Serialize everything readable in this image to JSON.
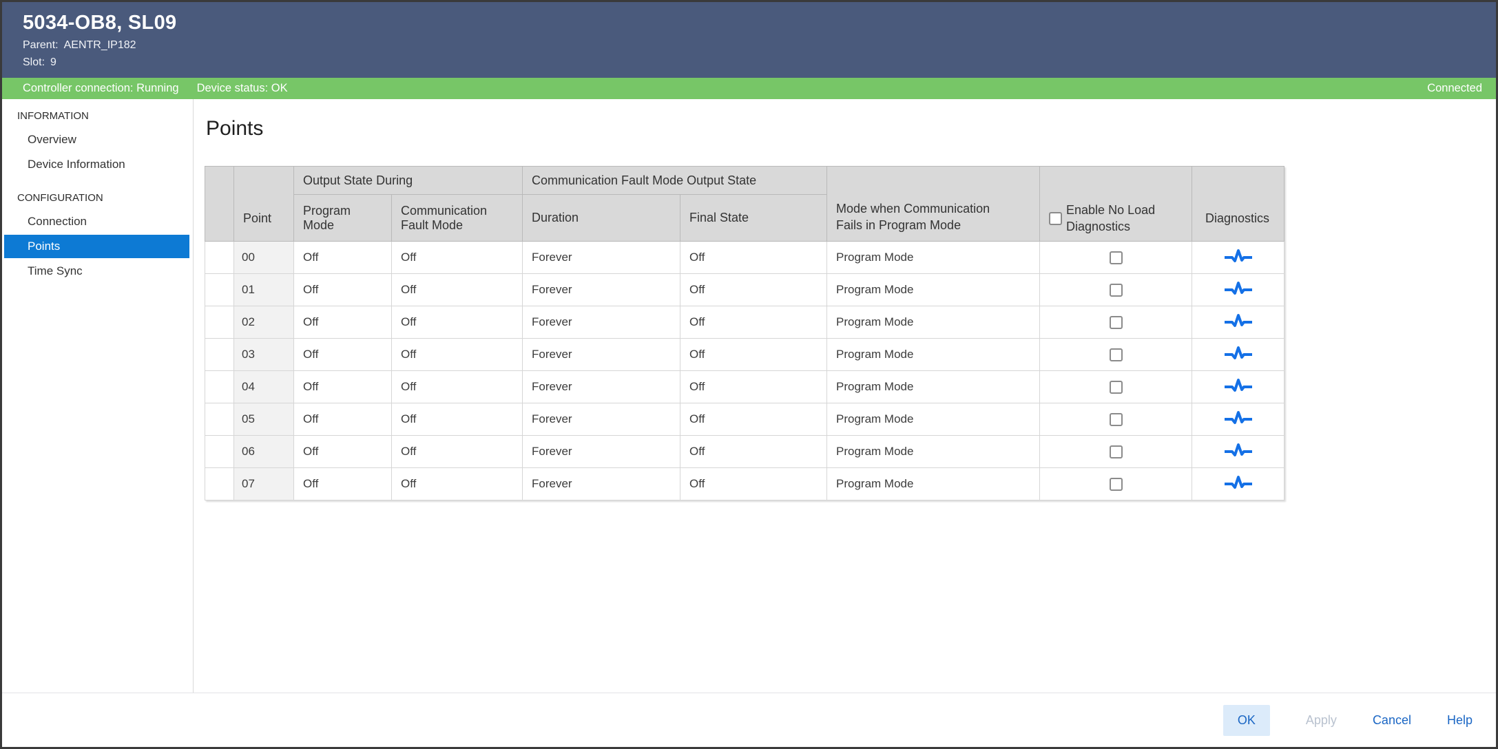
{
  "window": {
    "title": "5034-OB8, SL09",
    "parent_label": "Parent:",
    "parent_value": "AENTR_IP182",
    "slot_label": "Slot:",
    "slot_value": "9"
  },
  "status_bar": {
    "controller_connection": "Controller connection: Running",
    "device_status": "Device status: OK",
    "connection_state": "Connected"
  },
  "sidebar": {
    "sections": [
      {
        "title": "INFORMATION",
        "items": [
          {
            "label": "Overview",
            "selected": false
          },
          {
            "label": "Device Information",
            "selected": false
          }
        ]
      },
      {
        "title": "CONFIGURATION",
        "items": [
          {
            "label": "Connection",
            "selected": false
          },
          {
            "label": "Points",
            "selected": true
          },
          {
            "label": "Time Sync",
            "selected": false
          }
        ]
      }
    ]
  },
  "main": {
    "title": "Points",
    "table": {
      "header": {
        "group_output_state": "Output State During",
        "group_comm_fault": "Communication Fault Mode Output State",
        "point": "Point",
        "program_mode": "Program Mode",
        "comm_fault_mode": "Communication Fault Mode",
        "duration": "Duration",
        "final_state": "Final State",
        "mode_when": "Mode when Communication Fails in Program Mode",
        "enable_no_load": "Enable No Load Diagnostics",
        "diagnostics": "Diagnostics",
        "enable_no_load_checked": false
      },
      "rows": [
        {
          "point": "00",
          "program_mode": "Off",
          "communication_fault_mode": "Off",
          "duration": "Forever",
          "final_state": "Off",
          "mode_when_communication_fails": "Program Mode",
          "enable_no_load": false
        },
        {
          "point": "01",
          "program_mode": "Off",
          "communication_fault_mode": "Off",
          "duration": "Forever",
          "final_state": "Off",
          "mode_when_communication_fails": "Program Mode",
          "enable_no_load": false
        },
        {
          "point": "02",
          "program_mode": "Off",
          "communication_fault_mode": "Off",
          "duration": "Forever",
          "final_state": "Off",
          "mode_when_communication_fails": "Program Mode",
          "enable_no_load": false
        },
        {
          "point": "03",
          "program_mode": "Off",
          "communication_fault_mode": "Off",
          "duration": "Forever",
          "final_state": "Off",
          "mode_when_communication_fails": "Program Mode",
          "enable_no_load": false
        },
        {
          "point": "04",
          "program_mode": "Off",
          "communication_fault_mode": "Off",
          "duration": "Forever",
          "final_state": "Off",
          "mode_when_communication_fails": "Program Mode",
          "enable_no_load": false
        },
        {
          "point": "05",
          "program_mode": "Off",
          "communication_fault_mode": "Off",
          "duration": "Forever",
          "final_state": "Off",
          "mode_when_communication_fails": "Program Mode",
          "enable_no_load": false
        },
        {
          "point": "06",
          "program_mode": "Off",
          "communication_fault_mode": "Off",
          "duration": "Forever",
          "final_state": "Off",
          "mode_when_communication_fails": "Program Mode",
          "enable_no_load": false
        },
        {
          "point": "07",
          "program_mode": "Off",
          "communication_fault_mode": "Off",
          "duration": "Forever",
          "final_state": "Off",
          "mode_when_communication_fails": "Program Mode",
          "enable_no_load": false
        }
      ]
    }
  },
  "footer": {
    "ok": "OK",
    "apply": "Apply",
    "cancel": "Cancel",
    "help": "Help"
  },
  "colors": {
    "header_bg": "#4a5a7c",
    "status_bg": "#77c667",
    "selected_nav_blue": "#0d7ad4",
    "link_blue": "#1a66c4",
    "diagnostics_icon_blue": "#1470e6",
    "table_header_bg": "#d9d9d9"
  },
  "icons": {
    "diagnostics": "pulse-waveform-icon",
    "enable_no_load": "checkbox-unchecked"
  }
}
